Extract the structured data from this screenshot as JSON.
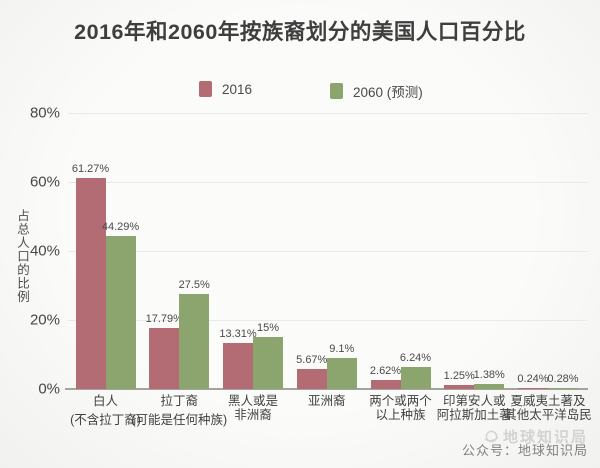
{
  "title": "2016年和2060年按族裔划分的美国人口百分比",
  "watermark": {
    "logo_text": "地球知识局",
    "caption": "公众号：地球知识局"
  },
  "chart_data": {
    "type": "bar",
    "title": "2016年和2060年按族裔划分的美国人口百分比",
    "xlabel": "",
    "ylabel": "占总人口的比例",
    "ylim": [
      0,
      80
    ],
    "yticks": [
      "80%",
      "60%",
      "40%",
      "20%",
      "0%"
    ],
    "grid": true,
    "legend_position": "top",
    "categories": [
      {
        "lines": [
          "白人",
          "(不含拉丁裔)"
        ]
      },
      {
        "lines": [
          "拉丁裔",
          "(可能是任何种族)"
        ]
      },
      {
        "lines": [
          "黑人或是",
          "非洲裔"
        ]
      },
      {
        "lines": [
          "亚洲裔"
        ]
      },
      {
        "lines": [
          "两个或两个",
          "以上种族"
        ]
      },
      {
        "lines": [
          "印第安人或",
          "阿拉斯加土著"
        ]
      },
      {
        "lines": [
          "夏威夷土著及",
          "其他太平洋岛民"
        ]
      }
    ],
    "series": [
      {
        "name": "2016",
        "color": "#b36b74",
        "values": [
          61.27,
          17.79,
          13.31,
          5.67,
          2.62,
          1.25,
          0.24
        ],
        "labels": [
          "61.27%",
          "17.79%",
          "13.31%",
          "5.67%",
          "2.62%",
          "1.25%",
          "0.24%"
        ]
      },
      {
        "name": "2060 (预测)",
        "color": "#8ca56e",
        "values": [
          44.29,
          27.5,
          15,
          9.1,
          6.24,
          1.38,
          0.28
        ],
        "labels": [
          "44.29%",
          "27.5%",
          "15%",
          "9.1%",
          "6.24%",
          "1.38%",
          "0.28%"
        ]
      }
    ]
  }
}
